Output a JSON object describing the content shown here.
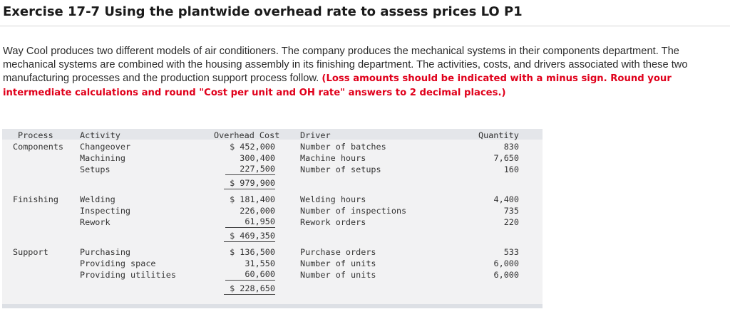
{
  "heading": "Exercise 17-7 Using the plantwide overhead rate to assess prices LO P1",
  "intro": {
    "text": "Way Cool produces two different models of air conditioners. The company produces the mechanical systems in their components department. The mechanical systems are combined with the housing assembly in its finishing department. The activities, costs, and drivers associated with these two manufacturing processes and the production support process follow. ",
    "instruction": "(Loss amounts should be indicated with a minus sign. Round your intermediate calculations and round \"Cost per unit and OH rate\" answers to 2 decimal places.)"
  },
  "table": {
    "headers": {
      "process": "Process",
      "activity": "Activity",
      "overhead": "Overhead Cost",
      "driver": "Driver",
      "quantity": "Quantity"
    },
    "groups": [
      {
        "process": "Components",
        "rows": [
          {
            "activity": "Changeover",
            "cost": "$ 452,000",
            "driver": "Number of batches",
            "quantity": "830"
          },
          {
            "activity": "Machining",
            "cost": "300,400",
            "driver": "Machine hours",
            "quantity": "7,650"
          },
          {
            "activity": "Setups",
            "cost": "227,500",
            "driver": "Number of setups",
            "quantity": "160"
          }
        ],
        "total": "$ 979,900"
      },
      {
        "process": "Finishing",
        "rows": [
          {
            "activity": "Welding",
            "cost": "$ 181,400",
            "driver": "Welding hours",
            "quantity": "4,400"
          },
          {
            "activity": "Inspecting",
            "cost": "226,000",
            "driver": "Number of inspections",
            "quantity": "735"
          },
          {
            "activity": "Rework",
            "cost": "61,950",
            "driver": "Rework orders",
            "quantity": "220"
          }
        ],
        "total": "$ 469,350"
      },
      {
        "process": "Support",
        "rows": [
          {
            "activity": "Purchasing",
            "cost": "$ 136,500",
            "driver": "Purchase orders",
            "quantity": "533"
          },
          {
            "activity": "Providing space",
            "cost": "31,550",
            "driver": "Number of units",
            "quantity": "6,000"
          },
          {
            "activity": "Providing utilities",
            "cost": "60,600",
            "driver": "Number of units",
            "quantity": "6,000"
          }
        ],
        "total": "$ 228,650"
      }
    ]
  }
}
